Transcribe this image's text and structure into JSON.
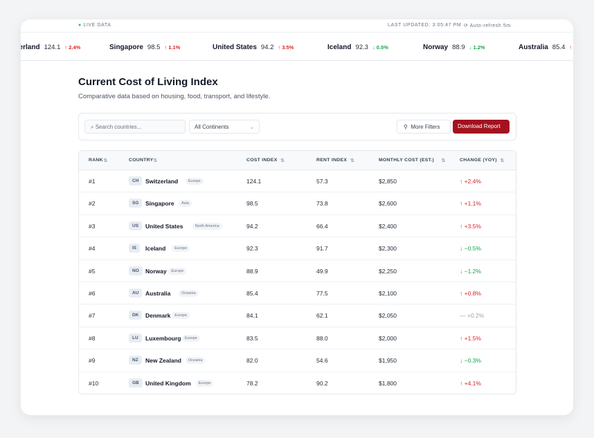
{
  "status_bar": {
    "live": "LIVE DATA",
    "last_updated": "LAST UPDATED: 3:05:47 PM",
    "auto_refresh": "Auto-refresh 5m"
  },
  "ticker": [
    {
      "name": "Switzerland",
      "value": "124.1",
      "change": "↑ 2.4%"
    },
    {
      "name": "Singapore",
      "value": "98.5",
      "change": "↑ 1.1%"
    },
    {
      "name": "United States",
      "value": "94.2",
      "change": "↑ 3.5%"
    },
    {
      "name": "Iceland",
      "value": "92.3",
      "change": "↓ 0.5%"
    },
    {
      "name": "Norway",
      "value": "88.9",
      "change": "↓ 1.2%"
    },
    {
      "name": "Australia",
      "value": "85.4",
      "change": "↑"
    }
  ],
  "header": {
    "title": "Current Cost of Living Index",
    "subtitle": "Comparative data based on housing, food, transport, and lifestyle."
  },
  "toolbar": {
    "search_placeholder": "Search countries...",
    "continent_select": "All Continents",
    "more_filters": "More Filters",
    "download": "Download Report"
  },
  "table": {
    "columns": [
      "RANK",
      "COUNTRY",
      "COST INDEX",
      "RENT INDEX",
      "MONTHLY COST (EST.)",
      "CHANGE (YOY)"
    ],
    "rows": [
      [
        "#1",
        "CH",
        "Switzerland",
        "Europe",
        "124.1",
        "57.3",
        "$2,850",
        "↑ +2.4%"
      ],
      [
        "#2",
        "SG",
        "Singapore",
        "Asia",
        "98.5",
        "73.8",
        "$2,600",
        "↑ +1.1%"
      ],
      [
        "#3",
        "US",
        "United States",
        "North America",
        "94.2",
        "66.4",
        "$2,400",
        "↑ +3.5%"
      ],
      [
        "#4",
        "IS",
        "Iceland",
        "Europe",
        "92.3",
        "91.7",
        "$2,300",
        "↓ −0.5%"
      ],
      [
        "#5",
        "NO",
        "Norway",
        "Europe",
        "88.9",
        "49.9",
        "$2,250",
        "↓ −1.2%"
      ],
      [
        "#6",
        "AU",
        "Australia",
        "Oceania",
        "85.4",
        "77.5",
        "$2,100",
        "↑ +0.8%"
      ],
      [
        "#7",
        "DK",
        "Denmark",
        "Europe",
        "84.1",
        "62.1",
        "$2,050",
        "— +0.2%"
      ],
      [
        "#8",
        "LU",
        "Luxembourg",
        "Europe",
        "83.5",
        "88.0",
        "$2,000",
        "↑ +1.5%"
      ],
      [
        "#9",
        "NZ",
        "New Zealand",
        "Oceania",
        "82.0",
        "54.6",
        "$1,950",
        "↓ −0.3%"
      ],
      [
        "#10",
        "GB",
        "United Kingdom",
        "Europe",
        "78.2",
        "90.2",
        "$1,800",
        "↑ +4.1%"
      ]
    ]
  }
}
